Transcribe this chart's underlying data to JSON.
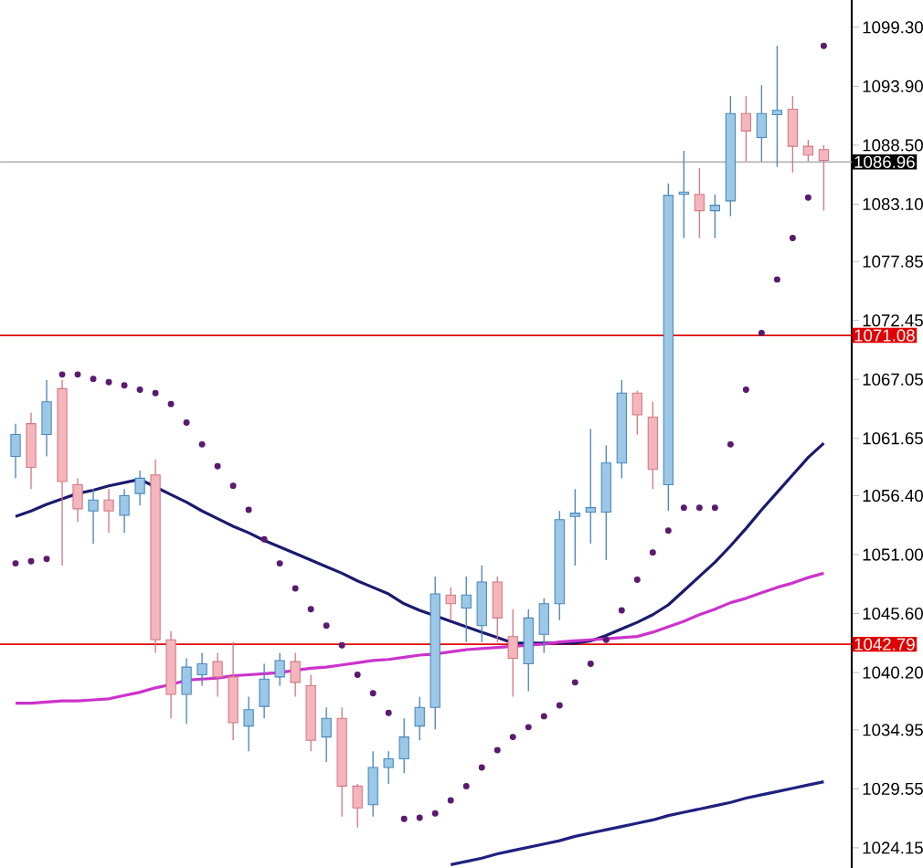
{
  "chart_data": {
    "type": "candlestick",
    "tick_labels": "y",
    "categories": [
      null,
      null,
      null,
      null,
      null,
      null,
      null,
      null,
      null,
      null,
      null,
      null,
      null,
      null,
      null,
      null,
      null,
      null,
      null,
      null,
      null,
      null,
      null,
      null,
      null,
      null,
      null,
      null,
      null,
      null,
      null,
      null,
      null,
      null,
      null,
      null,
      null,
      null,
      null,
      null,
      null,
      null,
      null,
      null,
      null,
      null,
      null,
      null,
      null,
      null,
      null,
      null,
      null
    ],
    "ohlc": [
      [
        1060,
        1063,
        1058,
        1062
      ],
      [
        1063,
        1064,
        1057,
        1059
      ],
      [
        1062,
        1067,
        1060,
        1065
      ],
      [
        1066.2,
        1067,
        1050,
        1057.7
      ],
      [
        1057.4,
        1058,
        1054,
        1055.2
      ],
      [
        1055,
        1057,
        1052,
        1056
      ],
      [
        1056,
        1057,
        1053,
        1055
      ],
      [
        1054.6,
        1057,
        1053,
        1056.4
      ],
      [
        1056.6,
        1058.7,
        1055.5,
        1058
      ],
      [
        1058.3,
        1059.7,
        1042,
        1043.2
      ],
      [
        1043.2,
        1044,
        1036,
        1038.2
      ],
      [
        1038.2,
        1041.5,
        1035.5,
        1040.7
      ],
      [
        1040,
        1042,
        1039,
        1041
      ],
      [
        1041.2,
        1042,
        1038,
        1039.8
      ],
      [
        1039.8,
        1043,
        1034,
        1035.6
      ],
      [
        1035.3,
        1038,
        1033,
        1036.8
      ],
      [
        1037.1,
        1041,
        1036,
        1039.6
      ],
      [
        1039.8,
        1042,
        1039,
        1041.3
      ],
      [
        1041.2,
        1042,
        1038,
        1039.3
      ],
      [
        1039,
        1040,
        1033,
        1034
      ],
      [
        1034.3,
        1037,
        1032,
        1036
      ],
      [
        1036,
        1037,
        1027,
        1029.8
      ],
      [
        1029.8,
        1030,
        1026,
        1027.8
      ],
      [
        1028.1,
        1033,
        1027,
        1031.5
      ],
      [
        1031.5,
        1033,
        1030,
        1032.3
      ],
      [
        1032.3,
        1036,
        1031,
        1034.3
      ],
      [
        1035.3,
        1038,
        1034,
        1037
      ],
      [
        1037,
        1049,
        1035,
        1047.4
      ],
      [
        1047.3,
        1048,
        1045,
        1046.5
      ],
      [
        1046.1,
        1049,
        1043,
        1047.3
      ],
      [
        1044.5,
        1050,
        1043,
        1048.5
      ],
      [
        1048.5,
        1049,
        1043,
        1045.2
      ],
      [
        1043.5,
        1046,
        1038,
        1041.5
      ],
      [
        1041,
        1046,
        1038.5,
        1045.2
      ],
      [
        1043.7,
        1047,
        1042,
        1046.5
      ],
      [
        1046.5,
        1055,
        1045,
        1054.2
      ],
      [
        1054.5,
        1057,
        1050,
        1054.8
      ],
      [
        1054.9,
        1062.5,
        1052,
        1055.3
      ],
      [
        1054.9,
        1061,
        1050.5,
        1059.4
      ],
      [
        1059.4,
        1067,
        1058,
        1065.8
      ],
      [
        1065.8,
        1066,
        1062,
        1063.8
      ],
      [
        1063.6,
        1065,
        1057,
        1058.8
      ],
      [
        1057.4,
        1085,
        1055,
        1083.9
      ],
      [
        1084,
        1088,
        1080,
        1084.2
      ],
      [
        1084,
        1086.4,
        1080,
        1082.5
      ],
      [
        1082.5,
        1084,
        1080,
        1083
      ],
      [
        1083.4,
        1093,
        1082,
        1091.4
      ],
      [
        1091.4,
        1093,
        1087,
        1089.8
      ],
      [
        1089.2,
        1094,
        1087,
        1091.4
      ],
      [
        1091.3,
        1097.6,
        1086.5,
        1091.7
      ],
      [
        1091.8,
        1093,
        1086,
        1088.4
      ],
      [
        1088.4,
        1089,
        1087,
        1087.6
      ],
      [
        1088.1,
        1088.5,
        1082.5,
        1087.1
      ]
    ],
    "series": [
      {
        "type": "line",
        "color": "#1a1a6e",
        "values": [
          1054.5,
          1055,
          1055.6,
          1056.1,
          1056.6,
          1056.9,
          1057.3,
          1057.6,
          1057.9,
          1057.2,
          1056.5,
          1055.8,
          1055,
          1054.3,
          1053.6,
          1053,
          1052.3,
          1051.7,
          1051.1,
          1050.5,
          1049.9,
          1049.3,
          1048.6,
          1048,
          1047.4,
          1046.5,
          1045.9,
          1045.4,
          1044.9,
          1044.4,
          1043.9,
          1043.4,
          1042.9,
          1042.9,
          1042.9,
          1042.9,
          1042.9,
          1043.1,
          1043.6,
          1044.2,
          1044.8,
          1045.5,
          1046.4,
          1047.7,
          1049,
          1050.3,
          1051.8,
          1053.4,
          1055.1,
          1056.7,
          1058.3,
          1059.9,
          1061.2
        ]
      },
      {
        "type": "line",
        "color": "#cc33cc",
        "values": [
          1037.4,
          1037.4,
          1037.5,
          1037.6,
          1037.6,
          1037.7,
          1037.8,
          1038.1,
          1038.4,
          1038.8,
          1039.1,
          1039.5,
          1039.6,
          1039.7,
          1039.9,
          1040,
          1040.1,
          1040.2,
          1040.4,
          1040.6,
          1040.7,
          1040.9,
          1041.1,
          1041.3,
          1041.4,
          1041.6,
          1041.8,
          1041.9,
          1042.1,
          1042.3,
          1042.4,
          1042.5,
          1042.6,
          1042.7,
          1042.8,
          1043,
          1043.1,
          1043.2,
          1043.3,
          1043.4,
          1043.5,
          1043.9,
          1044.4,
          1044.9,
          1045.5,
          1046,
          1046.6,
          1047,
          1047.5,
          1048,
          1048.4,
          1048.9,
          1049.3
        ]
      },
      {
        "type": "line",
        "color": "#202080",
        "values": [
          null,
          null,
          null,
          null,
          null,
          null,
          null,
          null,
          null,
          null,
          null,
          null,
          null,
          null,
          null,
          null,
          null,
          null,
          null,
          null,
          null,
          null,
          null,
          null,
          null,
          null,
          null,
          null,
          1022.6,
          1022.9,
          1023.2,
          1023.6,
          1023.9,
          1024.2,
          1024.5,
          1024.8,
          1025.2,
          1025.5,
          1025.8,
          1026.1,
          1026.4,
          1026.7,
          1027.1,
          1027.4,
          1027.7,
          1028,
          1028.3,
          1028.7,
          1029,
          1029.3,
          1029.6,
          1029.9,
          1030.2
        ]
      },
      {
        "type": "scatter",
        "color": "#5a1a6e",
        "marker": "circle",
        "values": [
          1050.2,
          1050.4,
          1050.6,
          1067.5,
          1067.5,
          1067.1,
          1066.8,
          1066.5,
          1066.1,
          1065.8,
          1064.8,
          1063.1,
          1061.1,
          1059.1,
          1057.3,
          1055.1,
          1052.4,
          1050.2,
          1047.9,
          1046,
          1044.5,
          1042.7,
          1040,
          1038.3,
          1036.5,
          1026.8,
          1026.9,
          1027.3,
          1028.5,
          1029.8,
          1031.5,
          1033.1,
          1034.3,
          1035.2,
          1036.2,
          1037.2,
          1039.3,
          1041,
          1043.2,
          1045.9,
          1048.7,
          1051.2,
          1053.2,
          1055.3,
          1055.3,
          1055.3,
          1061.1,
          1066.1,
          1071.3,
          1076.2,
          1080,
          1083.7,
          1097.6
        ]
      }
    ],
    "ylim": [
      1022.3,
      1101.8
    ],
    "yticks": [
      {
        "value": 1099.3,
        "label": "1099.30"
      },
      {
        "value": 1093.9,
        "label": "1093.90"
      },
      {
        "value": 1088.5,
        "label": "1088.50"
      },
      {
        "value": 1083.1,
        "label": "1083.10"
      },
      1077.85,
      1072.45,
      1067.05,
      1061.65,
      {
        "value": 1056.4,
        "label": "1056.40"
      },
      {
        "value": 1051,
        "label": "1051.00"
      },
      {
        "value": 1045.6,
        "label": "1045.60"
      },
      {
        "value": 1040.2,
        "label": "1040.20"
      },
      1034.95,
      1029.55,
      1024.15
    ],
    "ref_lines": [
      {
        "axis": "y",
        "value": 1086.96,
        "label": "1086.96",
        "color": "#b0b0b0"
      },
      {
        "axis": "y",
        "value": 1071.08,
        "label": "1071.08",
        "color": "#e00000"
      },
      {
        "axis": "y",
        "value": 1042.79,
        "label": "1042.79",
        "color": "#e00000"
      }
    ]
  }
}
